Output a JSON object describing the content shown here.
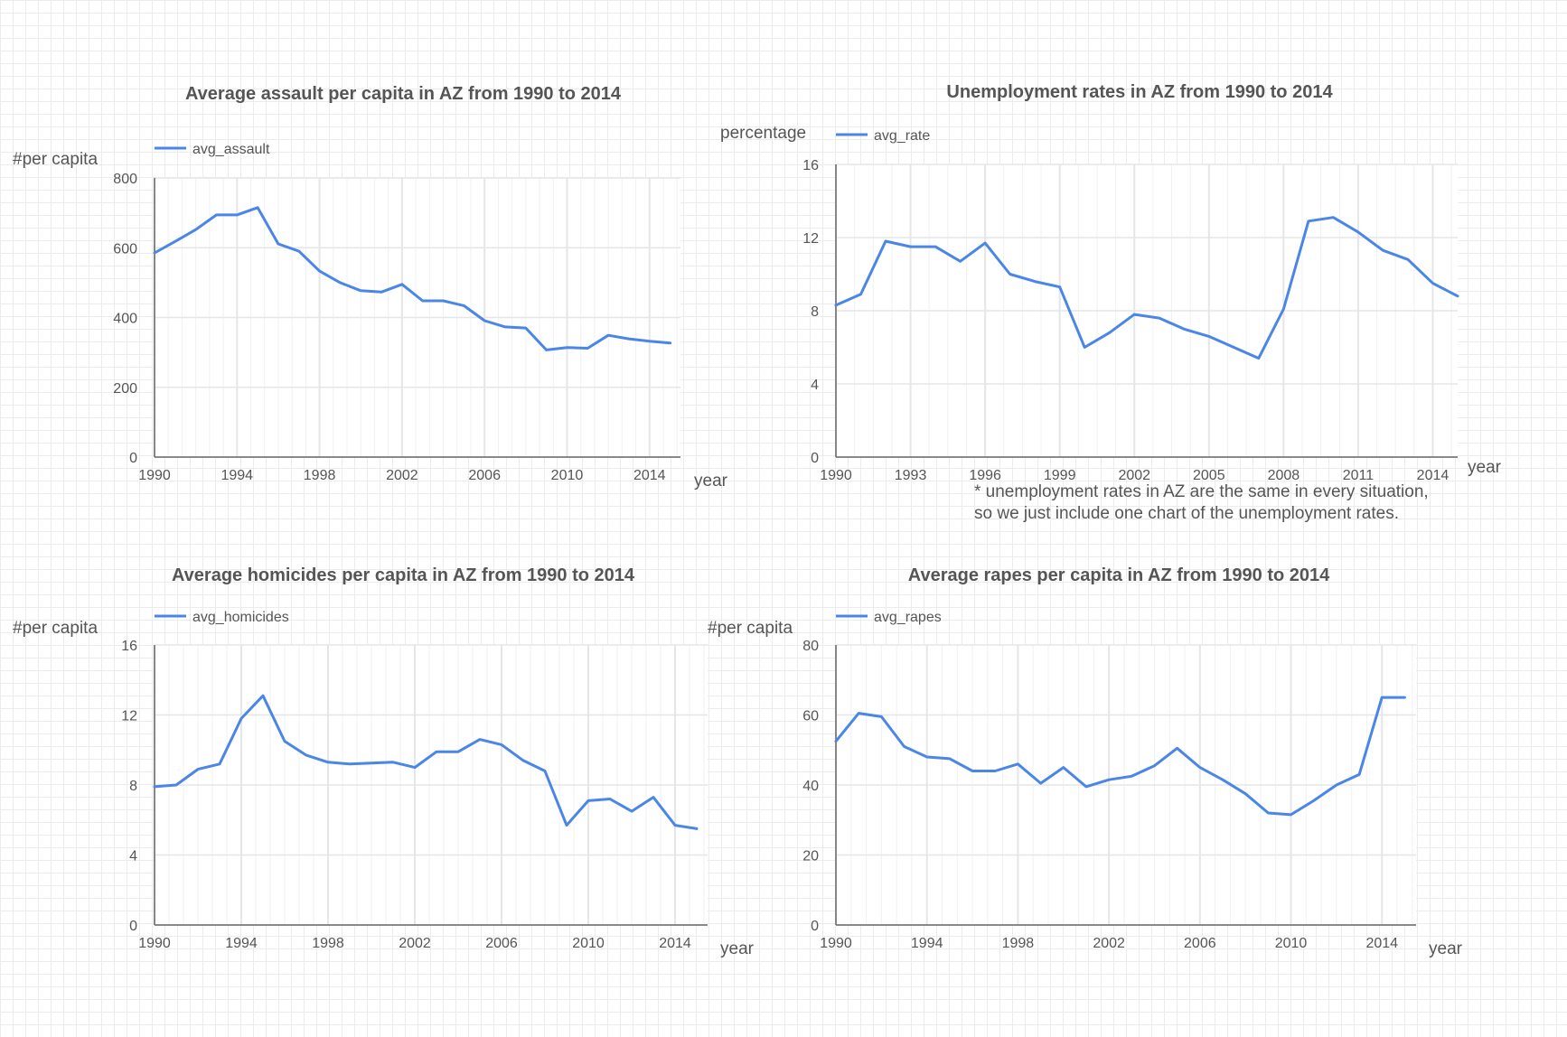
{
  "colors": {
    "line": "#4a86e8",
    "grid": "#e6e6e6",
    "axis": "#666666",
    "text": "#555555"
  },
  "note": {
    "line1": "* unemployment rates in AZ are the same in every situation,",
    "line2": "so we just include one chart of the unemployment rates."
  },
  "chart_data": [
    {
      "type": "line",
      "title": "Average assault per capita in AZ from 1990 to 2014",
      "xlabel": "year",
      "ylabel": "#per capita",
      "legend": "top-left",
      "grid": true,
      "xlim": [
        1990,
        2015.5
      ],
      "ylim": [
        0,
        800
      ],
      "xticks": [
        1990,
        1994,
        1998,
        2002,
        2006,
        2010,
        2014
      ],
      "yticks": [
        0,
        200,
        400,
        600,
        800
      ],
      "x": [
        1990,
        1991,
        1992,
        1993,
        1994,
        1995,
        1996,
        1997,
        1998,
        1999,
        2000,
        2001,
        2002,
        2003,
        2004,
        2005,
        2006,
        2007,
        2008,
        2009,
        2010,
        2011,
        2012,
        2013,
        2014,
        2015
      ],
      "series": [
        {
          "name": "avg_assault",
          "values": [
            585,
            618,
            652,
            694,
            694,
            715,
            611,
            590,
            533,
            500,
            477,
            473,
            495,
            448,
            448,
            434,
            391,
            373,
            370,
            307,
            314,
            312,
            349,
            339,
            332,
            327
          ]
        }
      ]
    },
    {
      "type": "line",
      "title": "Unemployment rates in AZ from 1990 to 2014",
      "xlabel": "year",
      "ylabel": "percentage",
      "legend": "top-left",
      "grid": true,
      "xlim": [
        1990,
        2015
      ],
      "ylim": [
        0,
        16
      ],
      "xticks": [
        1990,
        1993,
        1996,
        1999,
        2002,
        2005,
        2008,
        2011,
        2014
      ],
      "yticks": [
        0,
        4,
        8,
        12,
        16
      ],
      "x": [
        1990,
        1991,
        1992,
        1993,
        1994,
        1995,
        1996,
        1997,
        1998,
        1999,
        2000,
        2001,
        2002,
        2003,
        2004,
        2005,
        2006,
        2007,
        2008,
        2009,
        2010,
        2011,
        2012,
        2013,
        2014,
        2015
      ],
      "series": [
        {
          "name": "avg_rate",
          "values": [
            8.3,
            8.9,
            11.8,
            11.5,
            11.5,
            10.7,
            11.7,
            10.0,
            9.6,
            9.3,
            6.0,
            6.8,
            7.8,
            7.6,
            7.0,
            6.6,
            6.0,
            5.4,
            8.1,
            12.9,
            13.1,
            12.3,
            11.3,
            10.8,
            9.5,
            8.8
          ]
        }
      ]
    },
    {
      "type": "line",
      "title": "Average homicides per capita in AZ from 1990 to 2014",
      "xlabel": "year",
      "ylabel": "#per capita",
      "legend": "top-left",
      "grid": true,
      "xlim": [
        1990,
        2015.5
      ],
      "ylim": [
        0,
        16
      ],
      "xticks": [
        1990,
        1994,
        1998,
        2002,
        2006,
        2010,
        2014
      ],
      "yticks": [
        0,
        4,
        8,
        12,
        16
      ],
      "x": [
        1990,
        1991,
        1992,
        1993,
        1994,
        1995,
        1996,
        1997,
        1998,
        1999,
        2000,
        2001,
        2002,
        2003,
        2004,
        2005,
        2006,
        2007,
        2008,
        2009,
        2010,
        2011,
        2012,
        2013,
        2014,
        2015
      ],
      "series": [
        {
          "name": "avg_homicides",
          "values": [
            7.9,
            8.0,
            8.9,
            9.2,
            11.8,
            13.1,
            10.5,
            9.7,
            9.3,
            9.2,
            9.25,
            9.3,
            9.0,
            9.9,
            9.9,
            10.6,
            10.3,
            9.4,
            8.8,
            5.7,
            7.1,
            7.2,
            6.5,
            7.3,
            5.7,
            5.5
          ]
        }
      ]
    },
    {
      "type": "line",
      "title": "Average rapes per capita in AZ from 1990 to 2014",
      "xlabel": "year",
      "ylabel": "#per capita",
      "legend": "top-left",
      "grid": true,
      "xlim": [
        1990,
        2015.5
      ],
      "ylim": [
        0,
        80
      ],
      "xticks": [
        1990,
        1994,
        1998,
        2002,
        2006,
        2010,
        2014
      ],
      "yticks": [
        0,
        20,
        40,
        60,
        80
      ],
      "x": [
        1990,
        1991,
        1992,
        1993,
        1994,
        1995,
        1996,
        1997,
        1998,
        1999,
        2000,
        2001,
        2002,
        2003,
        2004,
        2005,
        2006,
        2007,
        2008,
        2009,
        2010,
        2011,
        2012,
        2013,
        2014,
        2015
      ],
      "series": [
        {
          "name": "avg_rapes",
          "values": [
            52.5,
            60.5,
            59.5,
            51.0,
            48.0,
            47.5,
            44.0,
            44.0,
            46.0,
            40.5,
            45.0,
            39.5,
            41.5,
            42.5,
            45.5,
            50.5,
            45.0,
            41.5,
            37.5,
            32.0,
            31.5,
            35.5,
            40.0,
            43.0,
            65.0,
            65.0
          ]
        }
      ]
    }
  ]
}
